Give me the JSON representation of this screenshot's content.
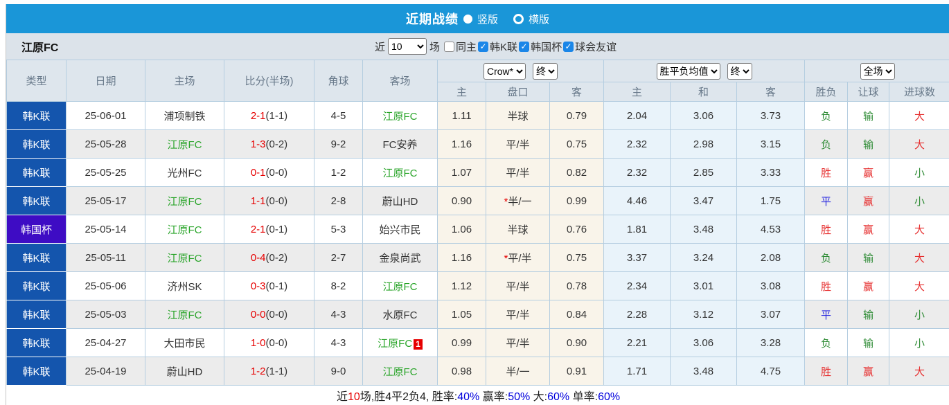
{
  "colors": {
    "accent_blue": "#1a96d8",
    "league_blue": "#1455ad",
    "cup_purple": "#3e0cc4",
    "self_green": "#28a428",
    "score_red": "#e60000",
    "win_red": "#e62e2e",
    "draw_blue": "#2a2ae0",
    "lose_green": "#2f8c36",
    "percent_blue": "#0000dd"
  },
  "title_bar": {
    "title": "近期战绩",
    "radio_vertical_label": "竖版",
    "radio_vertical_selected": true,
    "radio_horizontal_label": "横版",
    "radio_horizontal_selected": false
  },
  "filter_bar": {
    "team": "江原FC",
    "recent_label": "近",
    "count_value": "10",
    "games_label": "场",
    "checkboxes": [
      {
        "label": "同主",
        "checked": false
      },
      {
        "label": "韩K联",
        "checked": true
      },
      {
        "label": "韩国杯",
        "checked": true
      },
      {
        "label": "球会友谊",
        "checked": true
      }
    ]
  },
  "table": {
    "headers": {
      "type": "类型",
      "date": "日期",
      "home": "主场",
      "score": "比分(半场)",
      "corner": "角球",
      "away": "客场",
      "odds_sub": {
        "home": "主",
        "handicap": "盘口",
        "away": "客"
      },
      "mean_sub": {
        "home": "主",
        "draw": "和",
        "away": "客"
      },
      "result_sub": {
        "result": "胜负",
        "handicap": "让球",
        "goals": "进球数"
      },
      "selects": {
        "company": "Crow*",
        "company_time": "终",
        "mean": "胜平负均值",
        "mean_time": "终",
        "period": "全场"
      }
    },
    "rows": [
      {
        "type": "韩K联",
        "type_color": "blue",
        "date": "25-06-01",
        "home": "浦项制铁",
        "home_self": false,
        "score_ft": "2-1",
        "score_ht": "(1-1)",
        "corner": "4-5",
        "away": "江原FC",
        "away_self": true,
        "away_badge": "",
        "odds_home": "1.11",
        "handicap": "半球",
        "handicap_star": false,
        "odds_away": "0.79",
        "mean_home": "2.04",
        "mean_draw": "3.06",
        "mean_away": "3.73",
        "result": "负",
        "result_color": "green",
        "handicap_result": "输",
        "handicap_result_color": "green",
        "goals": "大",
        "goals_color": "red"
      },
      {
        "type": "韩K联",
        "type_color": "blue",
        "date": "25-05-28",
        "home": "江原FC",
        "home_self": true,
        "score_ft": "1-3",
        "score_ht": "(0-2)",
        "corner": "9-2",
        "away": "FC安养",
        "away_self": false,
        "away_badge": "",
        "odds_home": "1.16",
        "handicap": "平/半",
        "handicap_star": false,
        "odds_away": "0.75",
        "mean_home": "2.32",
        "mean_draw": "2.98",
        "mean_away": "3.15",
        "result": "负",
        "result_color": "green",
        "handicap_result": "输",
        "handicap_result_color": "green",
        "goals": "大",
        "goals_color": "red"
      },
      {
        "type": "韩K联",
        "type_color": "blue",
        "date": "25-05-25",
        "home": "光州FC",
        "home_self": false,
        "score_ft": "0-1",
        "score_ht": "(0-0)",
        "corner": "1-2",
        "away": "江原FC",
        "away_self": true,
        "away_badge": "",
        "odds_home": "1.07",
        "handicap": "平/半",
        "handicap_star": false,
        "odds_away": "0.82",
        "mean_home": "2.32",
        "mean_draw": "2.85",
        "mean_away": "3.33",
        "result": "胜",
        "result_color": "red",
        "handicap_result": "赢",
        "handicap_result_color": "red",
        "goals": "小",
        "goals_color": "green"
      },
      {
        "type": "韩K联",
        "type_color": "blue",
        "date": "25-05-17",
        "home": "江原FC",
        "home_self": true,
        "score_ft": "1-1",
        "score_ht": "(0-0)",
        "corner": "2-8",
        "away": "蔚山HD",
        "away_self": false,
        "away_badge": "",
        "odds_home": "0.90",
        "handicap": "半/一",
        "handicap_star": true,
        "odds_away": "0.99",
        "mean_home": "4.46",
        "mean_draw": "3.47",
        "mean_away": "1.75",
        "result": "平",
        "result_color": "blue",
        "handicap_result": "赢",
        "handicap_result_color": "red",
        "goals": "小",
        "goals_color": "green"
      },
      {
        "type": "韩国杯",
        "type_color": "purple",
        "date": "25-05-14",
        "home": "江原FC",
        "home_self": true,
        "score_ft": "2-1",
        "score_ht": "(0-1)",
        "corner": "5-3",
        "away": "始兴市民",
        "away_self": false,
        "away_badge": "",
        "odds_home": "1.06",
        "handicap": "半球",
        "handicap_star": false,
        "odds_away": "0.76",
        "mean_home": "1.81",
        "mean_draw": "3.48",
        "mean_away": "4.53",
        "result": "胜",
        "result_color": "red",
        "handicap_result": "赢",
        "handicap_result_color": "red",
        "goals": "大",
        "goals_color": "red"
      },
      {
        "type": "韩K联",
        "type_color": "blue",
        "date": "25-05-11",
        "home": "江原FC",
        "home_self": true,
        "score_ft": "0-4",
        "score_ht": "(0-2)",
        "corner": "2-7",
        "away": "金泉尚武",
        "away_self": false,
        "away_badge": "",
        "odds_home": "1.16",
        "handicap": "平/半",
        "handicap_star": true,
        "odds_away": "0.75",
        "mean_home": "3.37",
        "mean_draw": "3.24",
        "mean_away": "2.08",
        "result": "负",
        "result_color": "green",
        "handicap_result": "输",
        "handicap_result_color": "green",
        "goals": "大",
        "goals_color": "red"
      },
      {
        "type": "韩K联",
        "type_color": "blue",
        "date": "25-05-06",
        "home": "济州SK",
        "home_self": false,
        "score_ft": "0-3",
        "score_ht": "(0-1)",
        "corner": "8-2",
        "away": "江原FC",
        "away_self": true,
        "away_badge": "",
        "odds_home": "1.12",
        "handicap": "平/半",
        "handicap_star": false,
        "odds_away": "0.78",
        "mean_home": "2.34",
        "mean_draw": "3.01",
        "mean_away": "3.08",
        "result": "胜",
        "result_color": "red",
        "handicap_result": "赢",
        "handicap_result_color": "red",
        "goals": "大",
        "goals_color": "red"
      },
      {
        "type": "韩K联",
        "type_color": "blue",
        "date": "25-05-03",
        "home": "江原FC",
        "home_self": true,
        "score_ft": "0-0",
        "score_ht": "(0-0)",
        "corner": "4-3",
        "away": "水原FC",
        "away_self": false,
        "away_badge": "",
        "odds_home": "1.05",
        "handicap": "平/半",
        "handicap_star": false,
        "odds_away": "0.84",
        "mean_home": "2.28",
        "mean_draw": "3.12",
        "mean_away": "3.07",
        "result": "平",
        "result_color": "blue",
        "handicap_result": "输",
        "handicap_result_color": "green",
        "goals": "小",
        "goals_color": "green"
      },
      {
        "type": "韩K联",
        "type_color": "blue",
        "date": "25-04-27",
        "home": "大田市民",
        "home_self": false,
        "score_ft": "1-0",
        "score_ht": "(0-0)",
        "corner": "4-3",
        "away": "江原FC",
        "away_self": true,
        "away_badge": "1",
        "odds_home": "0.99",
        "handicap": "平/半",
        "handicap_star": false,
        "odds_away": "0.90",
        "mean_home": "2.21",
        "mean_draw": "3.06",
        "mean_away": "3.28",
        "result": "负",
        "result_color": "green",
        "handicap_result": "输",
        "handicap_result_color": "green",
        "goals": "小",
        "goals_color": "green"
      },
      {
        "type": "韩K联",
        "type_color": "blue",
        "date": "25-04-19",
        "home": "蔚山HD",
        "home_self": false,
        "score_ft": "1-2",
        "score_ht": "(1-1)",
        "corner": "9-0",
        "away": "江原FC",
        "away_self": true,
        "away_badge": "",
        "odds_home": "0.98",
        "handicap": "半/一",
        "handicap_star": false,
        "odds_away": "0.91",
        "mean_home": "1.71",
        "mean_draw": "3.48",
        "mean_away": "4.75",
        "result": "胜",
        "result_color": "red",
        "handicap_result": "赢",
        "handicap_result_color": "red",
        "goals": "大",
        "goals_color": "red"
      }
    ]
  },
  "footer": {
    "segments": [
      {
        "text": "近",
        "color": "default"
      },
      {
        "text": "10",
        "color": "red"
      },
      {
        "text": "场,胜4平2负4, 胜率:",
        "color": "default"
      },
      {
        "text": "40%",
        "color": "blue"
      },
      {
        "text": " 赢率:",
        "color": "default"
      },
      {
        "text": "50%",
        "color": "blue"
      },
      {
        "text": " 大:",
        "color": "default"
      },
      {
        "text": "60%",
        "color": "blue"
      },
      {
        "text": " 单率:",
        "color": "default"
      },
      {
        "text": "60%",
        "color": "blue"
      }
    ]
  }
}
